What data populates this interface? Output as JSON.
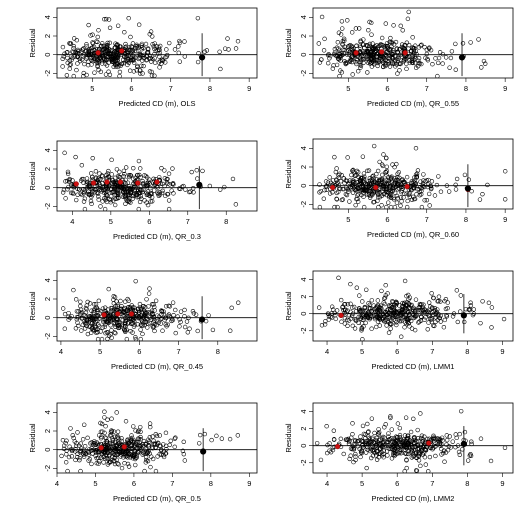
{
  "chart_data": [
    {
      "type": "scatter",
      "panel": "OLS",
      "xlabel": "Predicted CD (m), OLS",
      "ylabel": "Residual",
      "xlim": [
        4.1,
        9.2
      ],
      "ylim": [
        -2.5,
        5
      ],
      "xticks": [
        5,
        6,
        7,
        8,
        9
      ],
      "yticks": [
        -2,
        0,
        2,
        4
      ],
      "mean": 5.6,
      "sd": 0.75,
      "cut": 7.8,
      "cut_y": -0.3,
      "red": [
        [
          5.15,
          0.2
        ],
        [
          5.75,
          0.4
        ]
      ],
      "seed": 11
    },
    {
      "type": "scatter",
      "panel": "QR_0.55",
      "xlabel": "Predicted CD (m), QR_0.55",
      "ylabel": "Residual",
      "xlim": [
        4.1,
        9.2
      ],
      "ylim": [
        -2.5,
        5
      ],
      "xticks": [
        5,
        6,
        7,
        8,
        9
      ],
      "yticks": [
        -2,
        0,
        2,
        4
      ],
      "mean": 5.7,
      "sd": 0.75,
      "cut": 7.9,
      "cut_y": -0.3,
      "red": [
        [
          5.2,
          0.2
        ],
        [
          5.85,
          0.3
        ],
        [
          6.45,
          0.2
        ]
      ],
      "seed": 22
    },
    {
      "type": "scatter",
      "panel": "QR_0.3",
      "xlabel": "Predicted CD (m), QR_0.3",
      "ylabel": "Residual",
      "xlim": [
        3.6,
        8.8
      ],
      "ylim": [
        -2.5,
        5
      ],
      "xticks": [
        4,
        5,
        6,
        7,
        8
      ],
      "yticks": [
        -2,
        0,
        2,
        4
      ],
      "mean": 5.2,
      "sd": 0.75,
      "cut": 7.3,
      "cut_y": 0.3,
      "red": [
        [
          4.1,
          0.4
        ],
        [
          4.55,
          0.5
        ],
        [
          4.9,
          0.6
        ],
        [
          5.25,
          0.6
        ],
        [
          5.7,
          0.5
        ],
        [
          6.2,
          0.6
        ]
      ],
      "seed": 33
    },
    {
      "type": "scatter",
      "panel": "QR_0.60",
      "xlabel": "Predicted CD (m), QR_0.60",
      "ylabel": "Residual",
      "xlim": [
        4.1,
        9.2
      ],
      "ylim": [
        -2.5,
        5
      ],
      "xticks": [
        5,
        6,
        7,
        8,
        9
      ],
      "yticks": [
        -2,
        0,
        2,
        4
      ],
      "mean": 5.75,
      "sd": 0.75,
      "cut": 8.05,
      "cut_y": -0.3,
      "red": [
        [
          4.6,
          -0.2
        ],
        [
          5.7,
          -0.2
        ],
        [
          6.5,
          -0.1
        ],
        [
          8.05,
          -0.4
        ]
      ],
      "seed": 44
    },
    {
      "type": "scatter",
      "panel": "QR_0.45",
      "xlabel": "Predicted CD (m), QR_0.45",
      "ylabel": "Residual",
      "xlim": [
        3.9,
        9.0
      ],
      "ylim": [
        -2.5,
        5
      ],
      "xticks": [
        4,
        5,
        6,
        7,
        8
      ],
      "yticks": [
        -2,
        0,
        2,
        4
      ],
      "mean": 5.5,
      "sd": 0.75,
      "cut": 7.6,
      "cut_y": -0.2,
      "red": [
        [
          5.1,
          0.3
        ],
        [
          5.45,
          0.4
        ],
        [
          5.8,
          0.4
        ]
      ],
      "seed": 55
    },
    {
      "type": "scatter",
      "panel": "LMM1",
      "xlabel": "Predicted CD (m), LMM1",
      "ylabel": "Residual",
      "xlim": [
        3.6,
        9.3
      ],
      "ylim": [
        -3.2,
        5
      ],
      "xticks": [
        4,
        5,
        6,
        7,
        8,
        9
      ],
      "yticks": [
        -2,
        0,
        2,
        4
      ],
      "mean": 5.8,
      "sd": 0.95,
      "cut": 7.9,
      "cut_y": -0.2,
      "red": [
        [
          4.4,
          -0.2
        ]
      ],
      "seed": 66
    },
    {
      "type": "scatter",
      "panel": "QR_0.5",
      "xlabel": "Predicted CD (m), QR_0.5",
      "ylabel": "Residual",
      "xlim": [
        4.0,
        9.2
      ],
      "ylim": [
        -2.5,
        5
      ],
      "xticks": [
        4,
        5,
        6,
        7,
        8,
        9
      ],
      "yticks": [
        -2,
        0,
        2,
        4
      ],
      "mean": 5.6,
      "sd": 0.75,
      "cut": 7.8,
      "cut_y": -0.2,
      "red": [
        [
          5.15,
          0.2
        ],
        [
          5.75,
          0.3
        ]
      ],
      "seed": 77
    },
    {
      "type": "scatter",
      "panel": "LMM2",
      "xlabel": "Predicted CD (m), LMM2",
      "ylabel": "Residual",
      "xlim": [
        3.6,
        9.3
      ],
      "ylim": [
        -3.2,
        5
      ],
      "xticks": [
        4,
        5,
        6,
        7,
        8,
        9
      ],
      "yticks": [
        -2,
        0,
        2,
        4
      ],
      "mean": 5.9,
      "sd": 0.9,
      "cut": 7.9,
      "cut_y": 0.2,
      "red": [
        [
          4.3,
          -0.1
        ],
        [
          6.9,
          0.3
        ]
      ],
      "seed": 88
    }
  ]
}
